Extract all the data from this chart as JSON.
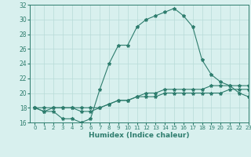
{
  "title": "",
  "xlabel": "Humidex (Indice chaleur)",
  "x": [
    0,
    1,
    2,
    3,
    4,
    5,
    6,
    7,
    8,
    9,
    10,
    11,
    12,
    13,
    14,
    15,
    16,
    17,
    18,
    19,
    20,
    21,
    22,
    23
  ],
  "line1": [
    18,
    17.5,
    17.5,
    16.5,
    16.5,
    16,
    16.5,
    20.5,
    24,
    26.5,
    26.5,
    29,
    30,
    30.5,
    31,
    31.5,
    30.5,
    29,
    24.5,
    22.5,
    21.5,
    21,
    20,
    19.5
  ],
  "line2": [
    18,
    17.5,
    18,
    18,
    18,
    17.5,
    17.5,
    18,
    18.5,
    19,
    19,
    19.5,
    20,
    20,
    20.5,
    20.5,
    20.5,
    20.5,
    20.5,
    21,
    21,
    21,
    21,
    21
  ],
  "line3": [
    18,
    18,
    18,
    18,
    18,
    18,
    18,
    18,
    18.5,
    19,
    19,
    19.5,
    19.5,
    19.5,
    20,
    20,
    20,
    20,
    20,
    20,
    20,
    20.5,
    20.5,
    20.5
  ],
  "ylim": [
    16,
    32
  ],
  "xlim": [
    -0.5,
    23
  ],
  "yticks": [
    16,
    18,
    20,
    22,
    24,
    26,
    28,
    30,
    32
  ],
  "xticks": [
    0,
    1,
    2,
    3,
    4,
    5,
    6,
    7,
    8,
    9,
    10,
    11,
    12,
    13,
    14,
    15,
    16,
    17,
    18,
    19,
    20,
    21,
    22,
    23
  ],
  "line_color": "#2e7d6e",
  "bg_color": "#d8f0ee",
  "grid_color": "#b8dbd8"
}
